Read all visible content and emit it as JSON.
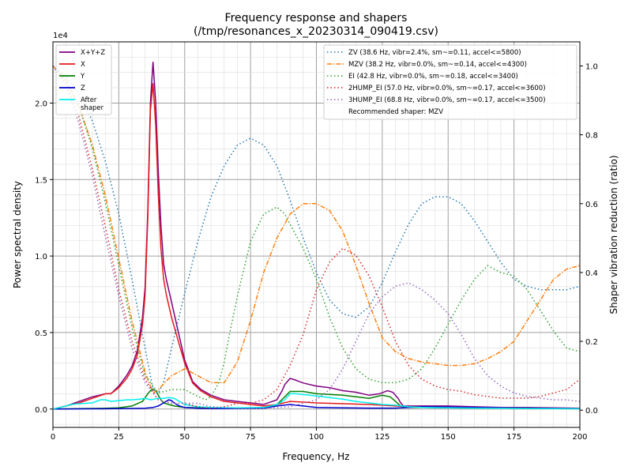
{
  "chart_data": {
    "type": "line",
    "title_line1": "Frequency response and shapers",
    "title_line2": "(/tmp/resonances_x_20230314_090419.csv)",
    "xlabel": "Frequency, Hz",
    "ylabel_left": "Power spectral density",
    "ylabel_right": "Shaper vibration reduction (ratio)",
    "left_exponent": "1e4",
    "xlim": [
      0,
      200
    ],
    "ylim_left": [
      -0.12,
      2.4
    ],
    "ylim_right": [
      -0.05,
      1.07
    ],
    "x_ticks": [
      "0",
      "25",
      "50",
      "75",
      "100",
      "125",
      "150",
      "175",
      "200"
    ],
    "y_left_ticks": [
      "0.0",
      "0.5",
      "1.0",
      "1.5",
      "2.0"
    ],
    "y_right_ticks": [
      "0.0",
      "0.2",
      "0.4",
      "0.6",
      "0.8",
      "1.0"
    ],
    "grid": true,
    "psd_legend_placement": "top-left",
    "shaper_legend_placement": "top-right",
    "psd_series": [
      {
        "name": "X+Y+Z",
        "color": "#800080",
        "width": 1.5,
        "x": [
          0,
          5,
          10,
          15,
          20,
          22,
          25,
          28,
          30,
          32,
          34,
          35,
          36,
          37,
          38,
          39,
          40,
          41,
          42,
          43,
          45,
          47,
          50,
          53,
          56,
          60,
          65,
          70,
          75,
          80,
          85,
          87,
          88,
          90,
          92,
          95,
          100,
          105,
          110,
          115,
          120,
          124,
          127,
          129,
          131,
          132,
          133,
          134,
          135,
          140,
          150,
          160,
          170,
          180,
          190,
          200
        ],
        "y": [
          0,
          0.02,
          0.05,
          0.08,
          0.1,
          0.1,
          0.15,
          0.22,
          0.28,
          0.38,
          0.6,
          0.8,
          1.3,
          2.0,
          2.27,
          2.0,
          1.55,
          1.2,
          0.95,
          0.85,
          0.7,
          0.55,
          0.32,
          0.18,
          0.13,
          0.09,
          0.06,
          0.05,
          0.04,
          0.03,
          0.06,
          0.12,
          0.16,
          0.2,
          0.19,
          0.17,
          0.15,
          0.14,
          0.12,
          0.11,
          0.09,
          0.1,
          0.12,
          0.11,
          0.07,
          0.04,
          0.02,
          0.02,
          0.02,
          0.02,
          0.02,
          0.015,
          0.01,
          0.01,
          0.008,
          0.005
        ]
      },
      {
        "name": "X",
        "color": "#e41a1c",
        "width": 1.5,
        "x": [
          0,
          5,
          10,
          15,
          20,
          22,
          25,
          28,
          30,
          32,
          34,
          35,
          36,
          37,
          38,
          39,
          40,
          41,
          42,
          43,
          45,
          47,
          50,
          53,
          56,
          60,
          65,
          70,
          75,
          80,
          85,
          90,
          95,
          100,
          110,
          120,
          125,
          130,
          135,
          140,
          150,
          160,
          170,
          180,
          190,
          200
        ],
        "y": [
          0,
          0.02,
          0.04,
          0.07,
          0.1,
          0.1,
          0.14,
          0.2,
          0.26,
          0.35,
          0.55,
          0.75,
          1.25,
          1.95,
          2.13,
          1.85,
          1.4,
          1.05,
          0.85,
          0.75,
          0.6,
          0.48,
          0.3,
          0.17,
          0.12,
          0.08,
          0.05,
          0.04,
          0.03,
          0.02,
          0.03,
          0.05,
          0.045,
          0.04,
          0.035,
          0.03,
          0.025,
          0.02,
          0.015,
          0.01,
          0.01,
          0.008,
          0.006,
          0.005,
          0.004,
          0.003
        ]
      },
      {
        "name": "Y",
        "color": "#008000",
        "width": 1.5,
        "x": [
          0,
          10,
          20,
          25,
          30,
          34,
          36,
          37,
          38,
          39,
          40,
          41,
          42,
          44,
          46,
          50,
          55,
          60,
          70,
          80,
          85,
          88,
          90,
          95,
          100,
          110,
          115,
          120,
          125,
          128,
          130,
          132,
          135,
          140,
          150,
          160,
          170,
          180,
          190,
          200
        ],
        "y": [
          0,
          0.003,
          0.005,
          0.008,
          0.02,
          0.05,
          0.1,
          0.12,
          0.13,
          0.12,
          0.09,
          0.06,
          0.04,
          0.03,
          0.02,
          0.01,
          0.008,
          0.006,
          0.006,
          0.006,
          0.03,
          0.08,
          0.115,
          0.115,
          0.1,
          0.09,
          0.08,
          0.07,
          0.09,
          0.08,
          0.05,
          0.02,
          0.01,
          0.01,
          0.008,
          0.006,
          0.005,
          0.004,
          0.003,
          0.002
        ]
      },
      {
        "name": "Z",
        "color": "#0000cc",
        "width": 1.5,
        "x": [
          0,
          20,
          30,
          35,
          38,
          40,
          42,
          44,
          45,
          46,
          48,
          50,
          55,
          60,
          80,
          85,
          90,
          95,
          100,
          110,
          120,
          130,
          140,
          160,
          180,
          200
        ],
        "y": [
          0,
          0.002,
          0.004,
          0.005,
          0.01,
          0.02,
          0.04,
          0.06,
          0.055,
          0.04,
          0.02,
          0.01,
          0.005,
          0.003,
          0.005,
          0.02,
          0.03,
          0.02,
          0.01,
          0.008,
          0.006,
          0.006,
          0.015,
          0.01,
          0.006,
          0.003
        ]
      },
      {
        "name": "After\nshaper",
        "color": "#00eeee",
        "width": 1.5,
        "x": [
          0,
          5,
          7,
          10,
          15,
          18,
          20,
          22,
          25,
          28,
          30,
          33,
          35,
          37,
          40,
          42,
          44,
          46,
          48,
          50,
          55,
          60,
          70,
          80,
          85,
          88,
          90,
          92,
          95,
          100,
          110,
          115,
          120,
          125,
          130,
          135,
          140,
          150,
          160,
          170,
          180,
          190,
          200
        ],
        "y": [
          0,
          0.02,
          0.03,
          0.035,
          0.04,
          0.06,
          0.06,
          0.05,
          0.055,
          0.06,
          0.06,
          0.065,
          0.07,
          0.06,
          0.07,
          0.07,
          0.075,
          0.07,
          0.05,
          0.03,
          0.015,
          0.01,
          0.008,
          0.01,
          0.03,
          0.06,
          0.1,
          0.1,
          0.095,
          0.085,
          0.065,
          0.05,
          0.04,
          0.03,
          0.025,
          0.015,
          0.01,
          0.008,
          0.006,
          0.005,
          0.004,
          0.003,
          0.002
        ]
      }
    ],
    "shaper_series": [
      {
        "name": "ZV (38.6 Hz, vibr=2.4%, sm~=0.11, accel<=5800)",
        "color": "#1f77b4",
        "dash": "1.5,3",
        "x": [
          0,
          5,
          10,
          15,
          20,
          25,
          30,
          35,
          38,
          40,
          42,
          45,
          50,
          55,
          60,
          65,
          70,
          75,
          80,
          85,
          90,
          95,
          100,
          105,
          110,
          115,
          120,
          125,
          130,
          135,
          140,
          145,
          150,
          155,
          160,
          165,
          170,
          175,
          180,
          185,
          190,
          195,
          200
        ],
        "y": [
          1.0,
          0.97,
          0.92,
          0.84,
          0.72,
          0.57,
          0.38,
          0.18,
          0.06,
          0.05,
          0.08,
          0.18,
          0.34,
          0.49,
          0.62,
          0.71,
          0.77,
          0.79,
          0.77,
          0.71,
          0.61,
          0.5,
          0.4,
          0.32,
          0.28,
          0.27,
          0.3,
          0.37,
          0.46,
          0.54,
          0.6,
          0.62,
          0.62,
          0.6,
          0.55,
          0.49,
          0.43,
          0.38,
          0.36,
          0.35,
          0.35,
          0.35,
          0.36
        ]
      },
      {
        "name": "MZV (38.2 Hz, vibr=0.0%, sm~=0.14, accel<=4300)",
        "color": "#ff7f0e",
        "dash": "6,2,1.5,2",
        "x": [
          0,
          5,
          10,
          15,
          20,
          25,
          30,
          35,
          38,
          40,
          45,
          50,
          55,
          60,
          65,
          70,
          75,
          80,
          85,
          90,
          95,
          100,
          105,
          110,
          115,
          120,
          125,
          130,
          135,
          140,
          145,
          150,
          155,
          160,
          165,
          170,
          175,
          180,
          185,
          190,
          195,
          200
        ],
        "y": [
          1.0,
          0.96,
          0.88,
          0.77,
          0.62,
          0.44,
          0.26,
          0.11,
          0.05,
          0.06,
          0.1,
          0.12,
          0.1,
          0.08,
          0.08,
          0.14,
          0.26,
          0.4,
          0.5,
          0.57,
          0.6,
          0.6,
          0.58,
          0.52,
          0.42,
          0.31,
          0.21,
          0.17,
          0.15,
          0.14,
          0.135,
          0.13,
          0.13,
          0.135,
          0.15,
          0.17,
          0.2,
          0.26,
          0.32,
          0.38,
          0.41,
          0.42
        ]
      },
      {
        "name": "EI (42.8 Hz, vibr=0.0%, sm~=0.18, accel<=3400)",
        "color": "#2ca02c",
        "dash": "1.5,3",
        "x": [
          0,
          5,
          10,
          15,
          20,
          25,
          30,
          35,
          40,
          45,
          50,
          55,
          58,
          60,
          63,
          65,
          67,
          70,
          75,
          80,
          85,
          88,
          90,
          95,
          100,
          105,
          110,
          115,
          120,
          125,
          130,
          135,
          140,
          145,
          150,
          155,
          160,
          165,
          170,
          175,
          180,
          185,
          190,
          195,
          200
        ],
        "y": [
          1.0,
          0.96,
          0.88,
          0.76,
          0.6,
          0.42,
          0.24,
          0.1,
          0.05,
          0.06,
          0.06,
          0.04,
          0.03,
          0.04,
          0.08,
          0.14,
          0.22,
          0.33,
          0.49,
          0.57,
          0.59,
          0.57,
          0.54,
          0.47,
          0.38,
          0.27,
          0.18,
          0.12,
          0.09,
          0.08,
          0.08,
          0.09,
          0.12,
          0.18,
          0.25,
          0.32,
          0.38,
          0.42,
          0.4,
          0.39,
          0.35,
          0.29,
          0.23,
          0.18,
          0.17
        ]
      },
      {
        "name": "2HUMP_EI (57.0 Hz, vibr=0.0%, sm~=0.17, accel<=3600)",
        "color": "#d62728",
        "dash": "1.5,3",
        "x": [
          0,
          5,
          10,
          15,
          20,
          25,
          30,
          35,
          40,
          45,
          50,
          55,
          60,
          65,
          70,
          75,
          80,
          85,
          90,
          95,
          100,
          105,
          110,
          115,
          120,
          125,
          130,
          135,
          140,
          145,
          150,
          155,
          160,
          165,
          170,
          175,
          180,
          185,
          190,
          195,
          200
        ],
        "y": [
          1.0,
          0.95,
          0.85,
          0.7,
          0.53,
          0.35,
          0.2,
          0.09,
          0.03,
          0.02,
          0.02,
          0.01,
          0.005,
          0.01,
          0.02,
          0.02,
          0.03,
          0.06,
          0.13,
          0.22,
          0.35,
          0.43,
          0.47,
          0.45,
          0.39,
          0.3,
          0.2,
          0.13,
          0.09,
          0.07,
          0.06,
          0.055,
          0.045,
          0.04,
          0.035,
          0.035,
          0.035,
          0.04,
          0.05,
          0.06,
          0.09
        ]
      },
      {
        "name": "3HUMP_EI (68.8 Hz, vibr=0.0%, sm~=0.17, accel<=3500)",
        "color": "#9467bd",
        "dash": "1.5,3",
        "x": [
          0,
          5,
          10,
          15,
          20,
          25,
          30,
          35,
          40,
          45,
          50,
          55,
          60,
          70,
          80,
          90,
          100,
          105,
          110,
          115,
          120,
          125,
          130,
          135,
          140,
          145,
          150,
          155,
          160,
          165,
          170,
          175,
          180,
          185,
          190,
          195,
          200
        ],
        "y": [
          1.0,
          0.94,
          0.83,
          0.68,
          0.5,
          0.33,
          0.18,
          0.08,
          0.03,
          0.02,
          0.02,
          0.02,
          0.01,
          0.005,
          0.005,
          0.01,
          0.03,
          0.06,
          0.12,
          0.2,
          0.28,
          0.33,
          0.36,
          0.37,
          0.35,
          0.32,
          0.28,
          0.22,
          0.15,
          0.1,
          0.07,
          0.05,
          0.04,
          0.035,
          0.03,
          0.03,
          0.025
        ]
      }
    ],
    "recommended_text": "Recommended shaper: MZV"
  }
}
